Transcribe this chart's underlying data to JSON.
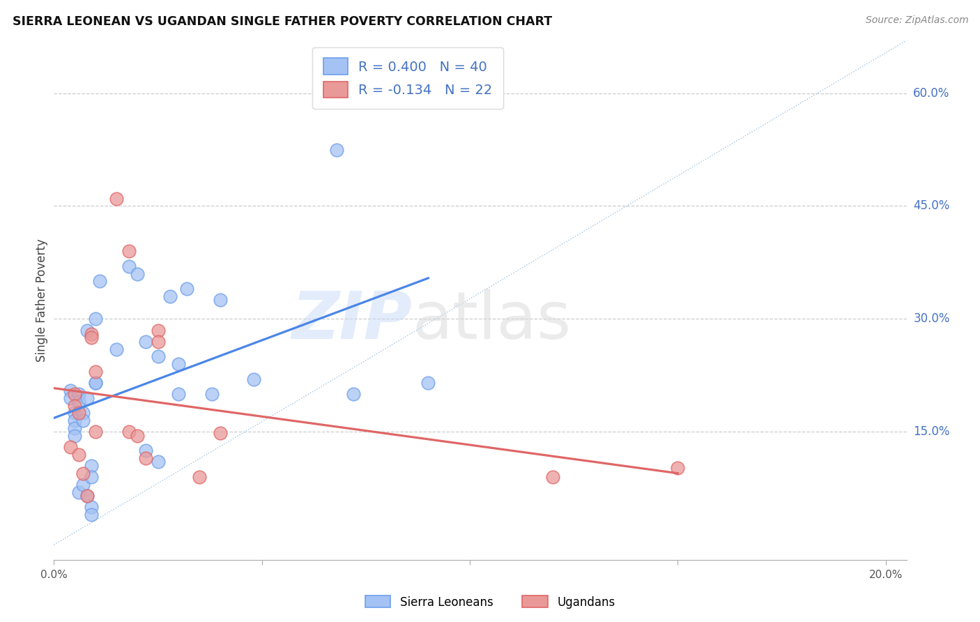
{
  "title": "SIERRA LEONEAN VS UGANDAN SINGLE FATHER POVERTY CORRELATION CHART",
  "source": "Source: ZipAtlas.com",
  "ylabel": "Single Father Poverty",
  "xlim": [
    0.0,
    0.205
  ],
  "ylim": [
    -0.02,
    0.67
  ],
  "xlabel_vals": [
    0.0,
    0.05,
    0.1,
    0.15,
    0.2
  ],
  "xlabel_labels": [
    "0.0%",
    "",
    "",
    "",
    "20.0%"
  ],
  "ylabel_vals": [
    0.15,
    0.3,
    0.45,
    0.6
  ],
  "ylabel_labels": [
    "15.0%",
    "30.0%",
    "45.0%",
    "60.0%"
  ],
  "sierra_R": 0.4,
  "sierra_N": 40,
  "ugandan_R": -0.134,
  "ugandan_N": 22,
  "sierra_face": "#a4c2f4",
  "sierra_edge": "#6d9eeb",
  "ugandan_face": "#ea9999",
  "ugandan_edge": "#e06666",
  "sierra_line": "#4a86e8",
  "ugandan_line": "#e06666",
  "ref_line_color": "#9fc5e8",
  "grid_color": "#cccccc",
  "bg": "#ffffff",
  "right_label_color": "#4472c4",
  "legend_text_color": "#4472c4",
  "watermark": "ZIPatlas",
  "sierra_x": [
    0.004,
    0.004,
    0.005,
    0.005,
    0.005,
    0.005,
    0.006,
    0.006,
    0.006,
    0.007,
    0.007,
    0.007,
    0.008,
    0.008,
    0.008,
    0.009,
    0.009,
    0.009,
    0.009,
    0.01,
    0.01,
    0.01,
    0.011,
    0.015,
    0.018,
    0.02,
    0.022,
    0.022,
    0.025,
    0.025,
    0.028,
    0.03,
    0.03,
    0.032,
    0.038,
    0.04,
    0.048,
    0.068,
    0.072,
    0.09
  ],
  "sierra_y": [
    0.205,
    0.195,
    0.175,
    0.165,
    0.155,
    0.145,
    0.2,
    0.19,
    0.07,
    0.175,
    0.165,
    0.08,
    0.285,
    0.195,
    0.065,
    0.105,
    0.09,
    0.05,
    0.04,
    0.3,
    0.215,
    0.215,
    0.35,
    0.26,
    0.37,
    0.36,
    0.27,
    0.125,
    0.25,
    0.11,
    0.33,
    0.24,
    0.2,
    0.34,
    0.2,
    0.325,
    0.22,
    0.525,
    0.2,
    0.215
  ],
  "ugandan_x": [
    0.004,
    0.005,
    0.005,
    0.006,
    0.006,
    0.007,
    0.008,
    0.009,
    0.009,
    0.01,
    0.01,
    0.015,
    0.018,
    0.018,
    0.02,
    0.022,
    0.025,
    0.025,
    0.035,
    0.04,
    0.12,
    0.15
  ],
  "ugandan_y": [
    0.13,
    0.2,
    0.185,
    0.175,
    0.12,
    0.095,
    0.065,
    0.28,
    0.275,
    0.23,
    0.15,
    0.46,
    0.39,
    0.15,
    0.145,
    0.115,
    0.285,
    0.27,
    0.09,
    0.148,
    0.09,
    0.102
  ]
}
